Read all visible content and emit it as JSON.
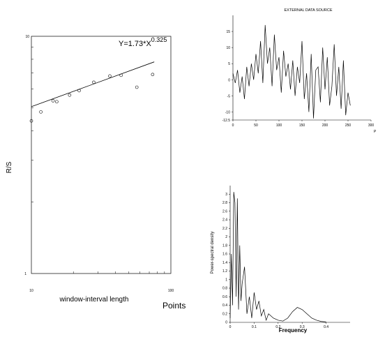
{
  "chart_data": [
    {
      "type": "scatter",
      "scale": "log-log",
      "equation_base": "Y=1.73*X",
      "equation_exp": "0.325",
      "ylabel": "R/S",
      "xlabel": "window-interval length",
      "xlabel_extra": "Points",
      "xlim": [
        10,
        100
      ],
      "ylim": [
        1,
        10
      ],
      "x_ticks": [
        "10",
        "100"
      ],
      "y_ticks": [
        "1",
        "10"
      ],
      "points": [
        {
          "x": 10,
          "y": 4.4
        },
        {
          "x": 11.7,
          "y": 4.8
        },
        {
          "x": 14.3,
          "y": 5.35
        },
        {
          "x": 15.2,
          "y": 5.3
        },
        {
          "x": 18.8,
          "y": 5.65
        },
        {
          "x": 22,
          "y": 5.9
        },
        {
          "x": 28,
          "y": 6.4
        },
        {
          "x": 36.5,
          "y": 6.8
        },
        {
          "x": 44,
          "y": 6.85
        },
        {
          "x": 57,
          "y": 6.1
        },
        {
          "x": 74,
          "y": 6.9
        }
      ],
      "fit": {
        "x": [
          10,
          76
        ],
        "y": [
          5.05,
          7.8
        ]
      }
    },
    {
      "type": "line",
      "title": "EXTERNAL DATA SOURCE",
      "xlim": [
        0,
        300
      ],
      "ylim": [
        -12.5,
        20
      ],
      "x_ticks": [
        0,
        50,
        100,
        150,
        200,
        250,
        300
      ],
      "y_ticks": [
        "15",
        "10",
        "5",
        "0",
        "-5",
        "-10",
        "-12.5"
      ],
      "x_axis_label": "P",
      "series": [
        {
          "x": [
            0,
            5,
            10,
            15,
            20,
            25,
            30,
            35,
            40,
            45,
            50,
            55,
            60,
            65,
            70,
            75,
            80,
            85,
            90,
            95,
            100,
            105,
            110,
            115,
            120,
            125,
            130,
            135,
            140,
            145,
            150,
            155,
            160,
            165,
            170,
            175,
            180,
            185,
            190,
            195,
            200,
            205,
            210,
            215,
            220,
            225,
            230,
            235,
            240,
            245,
            250,
            255
          ],
          "y": [
            2,
            -1,
            3,
            -4,
            1,
            -6,
            4,
            -2,
            5,
            0,
            8,
            2,
            12,
            -1,
            17,
            5,
            10,
            -2,
            14,
            3,
            7,
            -4,
            9,
            1,
            5,
            -3,
            6,
            -5,
            4,
            -1,
            12,
            -6,
            2,
            -10,
            8,
            -12,
            3,
            4,
            -7,
            10,
            -3,
            7,
            -8,
            -2,
            11,
            -5,
            4,
            -9,
            6,
            -11,
            -4,
            -8
          ]
        }
      ]
    },
    {
      "type": "line",
      "ylabel": "Power-spectral density",
      "xlabel": "Frequency",
      "xlim": [
        0,
        0.5
      ],
      "ylim": [
        0,
        3.2
      ],
      "x_ticks": [
        "0",
        "0.1",
        "0.2",
        "0.3",
        "0.4"
      ],
      "y_ticks": [
        "0",
        "0.2",
        "0.4",
        "0.6",
        "0.8",
        "1",
        "1.2",
        "1.4",
        "1.6",
        "1.8",
        "2",
        "2.2",
        "2.4",
        "2.6",
        "2.8",
        "3"
      ],
      "series": [
        {
          "x": [
            0,
            0.005,
            0.01,
            0.015,
            0.02,
            0.025,
            0.03,
            0.035,
            0.04,
            0.045,
            0.05,
            0.06,
            0.07,
            0.08,
            0.09,
            0.1,
            0.11,
            0.12,
            0.13,
            0.14,
            0.15,
            0.16,
            0.18,
            0.2,
            0.22,
            0.24,
            0.26,
            0.28,
            0.3,
            0.32,
            0.34,
            0.36,
            0.38,
            0.4
          ],
          "y": [
            0.1,
            1.6,
            0.4,
            3.05,
            2.8,
            0.6,
            2.9,
            0.3,
            1.8,
            0.5,
            0.9,
            1.3,
            0.2,
            0.6,
            0.1,
            0.7,
            0.3,
            0.5,
            0.15,
            0.3,
            0.05,
            0.2,
            0.1,
            0.05,
            0.03,
            0.1,
            0.25,
            0.35,
            0.3,
            0.2,
            0.1,
            0.05,
            0.02,
            0.01
          ]
        }
      ]
    }
  ]
}
